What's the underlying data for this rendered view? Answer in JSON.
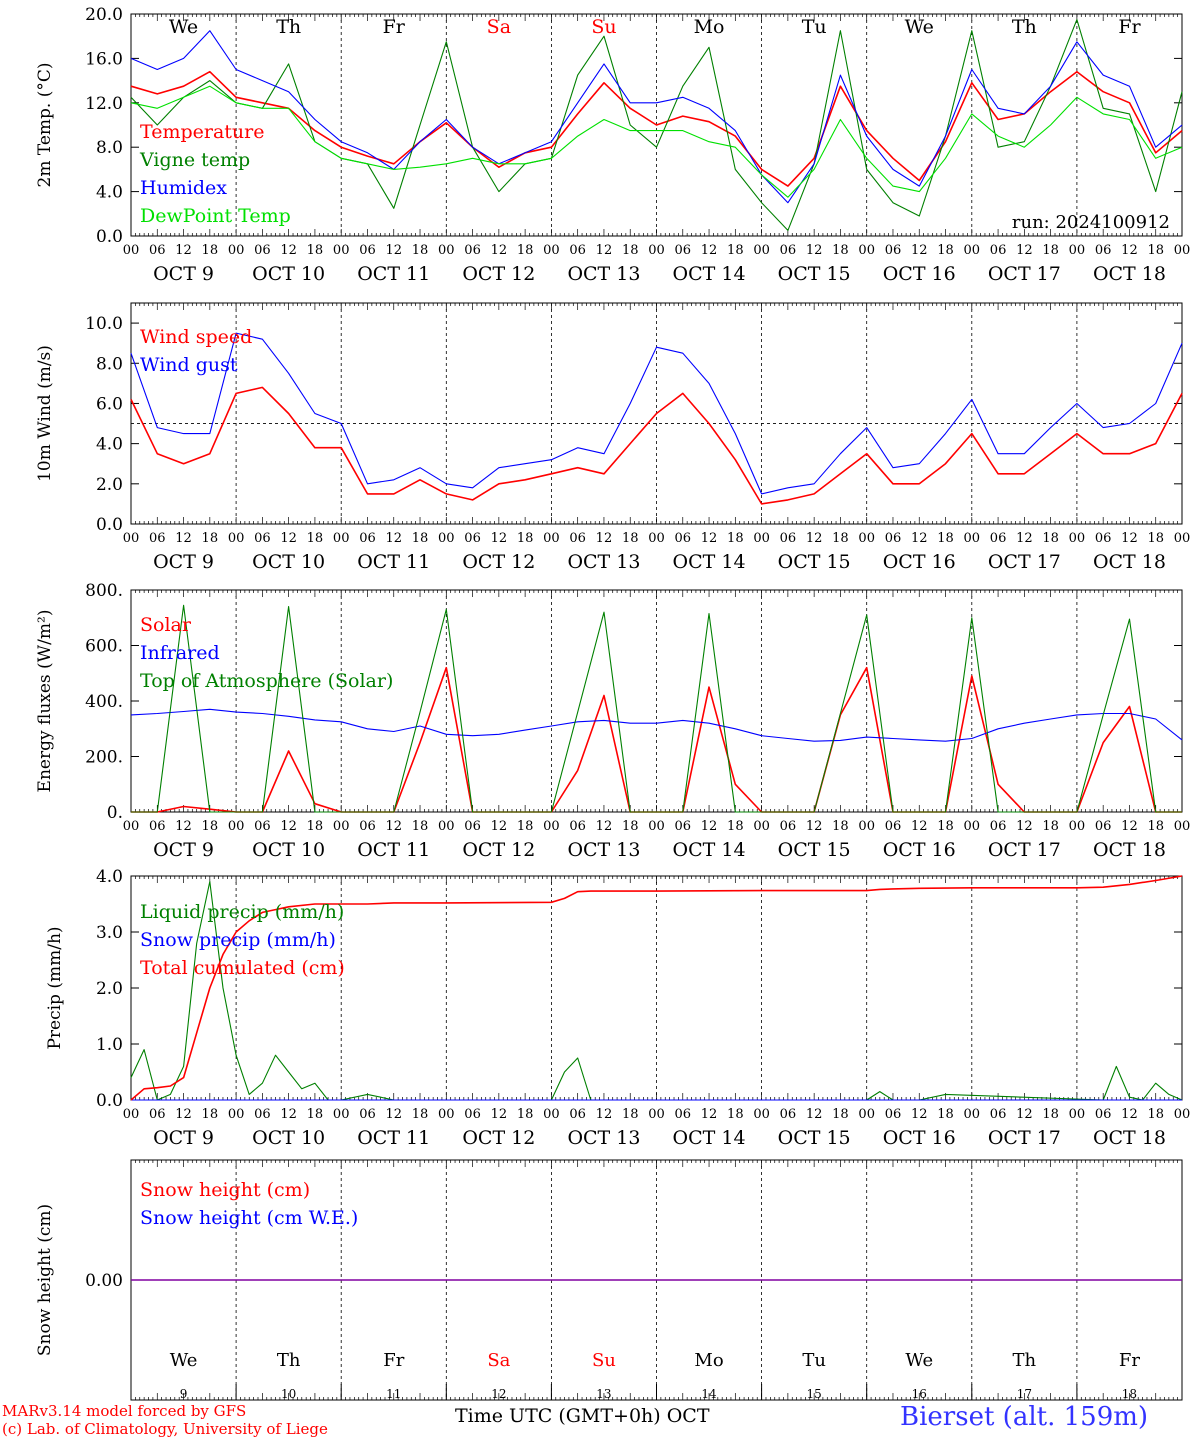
{
  "footer": {
    "credit_line1": "MARv3.14 model forced by GFS",
    "credit_line2": "(c) Lab. of Climatology, University of Liege",
    "xlabel": "Time UTC (GMT+0h) OCT",
    "station": "Bierset (alt. 159m)"
  },
  "colors": {
    "red": "#ff0000",
    "green": "#008000",
    "blue": "#0000ff",
    "lime": "#00e000",
    "purple": "#8000a0",
    "axis": "#000000"
  },
  "days": [
    "We",
    "Th",
    "Fr",
    "Sa",
    "Su",
    "Mo",
    "Tu",
    "We",
    "Th",
    "Fr"
  ],
  "weekend_days": [
    3,
    4
  ],
  "date_labels": [
    "OCT  9",
    "OCT 10",
    "OCT 11",
    "OCT 12",
    "OCT 13",
    "OCT 14",
    "OCT 15",
    "OCT 16",
    "OCT 17",
    "OCT 18"
  ],
  "bottom_dates": [
    "9",
    "10",
    "11",
    "12",
    "13",
    "14",
    "15",
    "16",
    "17",
    "18"
  ],
  "hour_ticks": [
    "00",
    "06",
    "12",
    "18"
  ],
  "hour_final": "00",
  "chart_data": [
    {
      "type": "line",
      "ylabel": "2m Temp. (°C)",
      "yticks": [
        "0.0",
        "4.0",
        "8.0",
        "12.0",
        "16.0",
        "20.0"
      ],
      "ylim": [
        0,
        20
      ],
      "annotation": "run: 2024100912",
      "x_unit": "hours since OCT 9 00 UTC",
      "series": [
        {
          "name": "Temperature",
          "color": "red",
          "x": [
            0,
            6,
            12,
            18,
            24,
            30,
            36,
            42,
            48,
            54,
            60,
            66,
            72,
            78,
            84,
            90,
            96,
            102,
            108,
            114,
            120,
            126,
            132,
            138,
            144,
            150,
            156,
            162,
            168,
            174,
            180,
            186,
            192,
            198,
            204,
            210,
            216,
            222,
            228,
            234,
            240
          ],
          "y": [
            13.5,
            12.8,
            13.5,
            14.8,
            12.5,
            12.0,
            11.5,
            9.5,
            8.0,
            7.2,
            6.5,
            8.5,
            10.2,
            8.0,
            6.2,
            7.5,
            8.0,
            11.0,
            13.8,
            11.5,
            10.0,
            10.8,
            10.3,
            9.0,
            6.0,
            4.5,
            7.0,
            13.5,
            9.5,
            7.0,
            5.0,
            8.5,
            13.8,
            10.5,
            11.0,
            13.0,
            14.8,
            13.0,
            12.0,
            7.5,
            9.5
          ]
        },
        {
          "name": "Vigne temp",
          "color": "green",
          "x": [
            0,
            6,
            12,
            18,
            24,
            30,
            36,
            42,
            48,
            54,
            60,
            66,
            72,
            78,
            84,
            90,
            96,
            102,
            108,
            114,
            120,
            126,
            132,
            138,
            144,
            150,
            156,
            162,
            168,
            174,
            180,
            186,
            192,
            198,
            204,
            210,
            216,
            222,
            228,
            234,
            240
          ],
          "y": [
            12.5,
            10.0,
            12.5,
            14.0,
            12.0,
            11.5,
            15.5,
            8.5,
            7.0,
            6.5,
            2.5,
            10.0,
            17.5,
            8.0,
            4.0,
            6.5,
            7.0,
            14.5,
            18.0,
            10.0,
            8.0,
            13.5,
            17.0,
            6.0,
            3.0,
            0.5,
            6.5,
            18.5,
            6.0,
            3.0,
            1.8,
            9.0,
            18.5,
            8.0,
            8.5,
            13.5,
            19.5,
            11.5,
            11.0,
            4.0,
            13.0
          ]
        },
        {
          "name": "Humidex",
          "color": "blue",
          "x": [
            0,
            6,
            12,
            18,
            24,
            30,
            36,
            42,
            48,
            54,
            60,
            66,
            72,
            78,
            84,
            90,
            96,
            102,
            108,
            114,
            120,
            126,
            132,
            138,
            144,
            150,
            156,
            162,
            168,
            174,
            180,
            186,
            192,
            198,
            204,
            210,
            216,
            222,
            228,
            234,
            240
          ],
          "y": [
            16.0,
            15.0,
            16.0,
            18.5,
            15.0,
            14.0,
            13.0,
            10.5,
            8.5,
            7.5,
            6.0,
            8.5,
            10.5,
            8.0,
            6.5,
            7.5,
            8.5,
            12.0,
            15.5,
            12.0,
            12.0,
            12.5,
            11.5,
            9.5,
            5.5,
            3.0,
            6.5,
            14.5,
            9.0,
            6.0,
            4.5,
            9.0,
            15.0,
            11.5,
            11.0,
            13.5,
            17.5,
            14.5,
            13.5,
            8.0,
            10.0
          ]
        },
        {
          "name": "DewPoint Temp",
          "color": "lime",
          "x": [
            0,
            6,
            12,
            18,
            24,
            30,
            36,
            42,
            48,
            54,
            60,
            66,
            72,
            78,
            84,
            90,
            96,
            102,
            108,
            114,
            120,
            126,
            132,
            138,
            144,
            150,
            156,
            162,
            168,
            174,
            180,
            186,
            192,
            198,
            204,
            210,
            216,
            222,
            228,
            234,
            240
          ],
          "y": [
            12.0,
            11.5,
            12.5,
            13.5,
            12.0,
            11.5,
            11.5,
            8.5,
            7.0,
            6.5,
            6.0,
            6.2,
            6.5,
            7.0,
            6.5,
            6.5,
            7.0,
            9.0,
            10.5,
            9.5,
            9.5,
            9.5,
            8.5,
            8.0,
            5.5,
            3.5,
            6.0,
            10.5,
            7.0,
            4.5,
            4.0,
            7.0,
            11.0,
            9.0,
            8.0,
            10.0,
            12.5,
            11.0,
            10.5,
            7.0,
            8.0
          ]
        }
      ]
    },
    {
      "type": "line",
      "ylabel": "10m Wind (m/s)",
      "yticks": [
        "0.0",
        "2.0",
        "4.0",
        "6.0",
        "8.0",
        "10.0"
      ],
      "ylim": [
        0,
        11
      ],
      "reference_line": 5,
      "series": [
        {
          "name": "Wind speed",
          "color": "red",
          "x": [
            0,
            6,
            12,
            18,
            24,
            30,
            36,
            42,
            48,
            54,
            60,
            66,
            72,
            78,
            84,
            90,
            96,
            102,
            108,
            114,
            120,
            126,
            132,
            138,
            144,
            150,
            156,
            162,
            168,
            174,
            180,
            186,
            192,
            198,
            204,
            210,
            216,
            222,
            228,
            234,
            240
          ],
          "y": [
            6.2,
            3.5,
            3.0,
            3.5,
            6.5,
            6.8,
            5.5,
            3.8,
            3.8,
            1.5,
            1.5,
            2.2,
            1.5,
            1.2,
            2.0,
            2.2,
            2.5,
            2.8,
            2.5,
            4.0,
            5.5,
            6.5,
            5.0,
            3.2,
            1.0,
            1.2,
            1.5,
            2.5,
            3.5,
            2.0,
            2.0,
            3.0,
            4.5,
            2.5,
            2.5,
            3.5,
            4.5,
            3.5,
            3.5,
            4.0,
            6.5
          ]
        },
        {
          "name": "Wind gust",
          "color": "blue",
          "x": [
            0,
            6,
            12,
            18,
            24,
            30,
            36,
            42,
            48,
            54,
            60,
            66,
            72,
            78,
            84,
            90,
            96,
            102,
            108,
            114,
            120,
            126,
            132,
            138,
            144,
            150,
            156,
            162,
            168,
            174,
            180,
            186,
            192,
            198,
            204,
            210,
            216,
            222,
            228,
            234,
            240
          ],
          "y": [
            8.5,
            4.8,
            4.5,
            4.5,
            9.5,
            9.2,
            7.5,
            5.5,
            5.0,
            2.0,
            2.2,
            2.8,
            2.0,
            1.8,
            2.8,
            3.0,
            3.2,
            3.8,
            3.5,
            6.0,
            8.8,
            8.5,
            7.0,
            4.5,
            1.5,
            1.8,
            2.0,
            3.5,
            4.8,
            2.8,
            3.0,
            4.5,
            6.2,
            3.5,
            3.5,
            4.8,
            6.0,
            4.8,
            5.0,
            6.0,
            9.0
          ]
        }
      ]
    },
    {
      "type": "line",
      "ylabel": "Energy fluxes (W/m²)",
      "yticks": [
        "0.",
        "200.",
        "400.",
        "600.",
        "800."
      ],
      "ylim": [
        0,
        800
      ],
      "series": [
        {
          "name": "Solar",
          "color": "red",
          "x": [
            0,
            6,
            12,
            18,
            24,
            30,
            36,
            42,
            48,
            54,
            60,
            66,
            72,
            78,
            84,
            90,
            96,
            102,
            108,
            114,
            120,
            126,
            132,
            138,
            144,
            150,
            156,
            162,
            168,
            174,
            180,
            186,
            192,
            198,
            204,
            210,
            216,
            222,
            228,
            234,
            240
          ],
          "y": [
            0,
            0,
            20,
            10,
            0,
            0,
            220,
            30,
            0,
            0,
            0,
            250,
            520,
            0,
            0,
            0,
            0,
            150,
            420,
            0,
            0,
            0,
            450,
            100,
            0,
            0,
            0,
            350,
            520,
            0,
            0,
            0,
            490,
            100,
            0,
            0,
            0,
            250,
            380,
            0,
            0
          ]
        },
        {
          "name": "Infrared",
          "color": "blue",
          "x": [
            0,
            6,
            12,
            18,
            24,
            30,
            36,
            42,
            48,
            54,
            60,
            66,
            72,
            78,
            84,
            90,
            96,
            102,
            108,
            114,
            120,
            126,
            132,
            138,
            144,
            150,
            156,
            162,
            168,
            174,
            180,
            186,
            192,
            198,
            204,
            210,
            216,
            222,
            228,
            234,
            240
          ],
          "y": [
            350,
            355,
            362,
            370,
            360,
            355,
            345,
            332,
            325,
            300,
            290,
            310,
            280,
            275,
            280,
            295,
            310,
            325,
            330,
            320,
            320,
            330,
            320,
            300,
            275,
            265,
            255,
            258,
            270,
            265,
            260,
            255,
            265,
            300,
            320,
            335,
            350,
            355,
            355,
            335,
            260
          ]
        },
        {
          "name": "Top of Atmosphere (Solar)",
          "color": "green",
          "x": [
            0,
            6,
            12,
            18,
            24,
            30,
            36,
            42,
            48,
            54,
            60,
            66,
            72,
            78,
            84,
            90,
            96,
            102,
            108,
            114,
            120,
            126,
            132,
            138,
            144,
            150,
            156,
            162,
            168,
            174,
            180,
            186,
            192,
            198,
            204,
            210,
            216,
            222,
            228,
            234,
            240
          ],
          "y": [
            0,
            0,
            745,
            0,
            0,
            0,
            740,
            0,
            0,
            0,
            0,
            360,
            730,
            0,
            0,
            0,
            0,
            360,
            720,
            0,
            0,
            0,
            715,
            0,
            0,
            0,
            0,
            355,
            710,
            0,
            0,
            0,
            700,
            0,
            0,
            0,
            0,
            350,
            695,
            0,
            0
          ]
        }
      ]
    },
    {
      "type": "line",
      "ylabel": "Precip (mm/h)",
      "yticks": [
        "0.0",
        "1.0",
        "2.0",
        "3.0",
        "4.0"
      ],
      "ylim": [
        0,
        4
      ],
      "series": [
        {
          "name": "Liquid precip (mm/h)",
          "color": "green",
          "x": [
            0,
            3,
            6,
            9,
            12,
            15,
            18,
            21,
            24,
            27,
            30,
            33,
            36,
            39,
            42,
            45,
            48,
            54,
            60,
            66,
            96,
            99,
            102,
            105,
            108,
            114,
            168,
            171,
            174,
            177,
            180,
            186,
            222,
            225,
            228,
            231,
            234,
            237,
            240
          ],
          "y": [
            0.4,
            0.9,
            0.0,
            0.1,
            0.6,
            2.8,
            3.9,
            2.0,
            0.8,
            0.1,
            0.3,
            0.8,
            0.5,
            0.2,
            0.3,
            0.0,
            0.0,
            0.1,
            0.0,
            0.0,
            0.0,
            0.5,
            0.75,
            0.0,
            0.0,
            0.0,
            0.0,
            0.15,
            0.0,
            0.0,
            0.0,
            0.1,
            0.0,
            0.6,
            0.05,
            0.0,
            0.3,
            0.1,
            0.0
          ]
        },
        {
          "name": "Snow precip (mm/h)",
          "color": "blue",
          "x": [
            0,
            240
          ],
          "y": [
            0.0,
            0.0
          ]
        },
        {
          "name": "Total cumulated (cm)",
          "color": "red",
          "x": [
            0,
            3,
            6,
            9,
            12,
            15,
            18,
            21,
            24,
            27,
            30,
            33,
            36,
            42,
            48,
            54,
            60,
            66,
            72,
            96,
            99,
            102,
            105,
            108,
            114,
            120,
            144,
            168,
            171,
            174,
            180,
            192,
            216,
            222,
            228,
            234,
            240
          ],
          "y": [
            0.0,
            0.2,
            0.22,
            0.25,
            0.4,
            1.2,
            2.0,
            2.6,
            3.0,
            3.2,
            3.35,
            3.4,
            3.45,
            3.5,
            3.5,
            3.5,
            3.52,
            3.52,
            3.52,
            3.53,
            3.6,
            3.72,
            3.73,
            3.73,
            3.73,
            3.73,
            3.74,
            3.74,
            3.76,
            3.77,
            3.78,
            3.79,
            3.79,
            3.8,
            3.85,
            3.92,
            4.0
          ]
        }
      ]
    },
    {
      "type": "line",
      "ylabel": "Snow height (cm)",
      "yticks": [
        "0.00"
      ],
      "ylim": [
        -1,
        1
      ],
      "series": [
        {
          "name": "Snow height (cm)",
          "color": "red",
          "x": [
            0,
            240
          ],
          "y": [
            0,
            0
          ]
        },
        {
          "name": "Snow height (cm W.E.)",
          "color": "blue",
          "x": [
            0,
            240
          ],
          "y": [
            0,
            0
          ]
        }
      ]
    }
  ]
}
